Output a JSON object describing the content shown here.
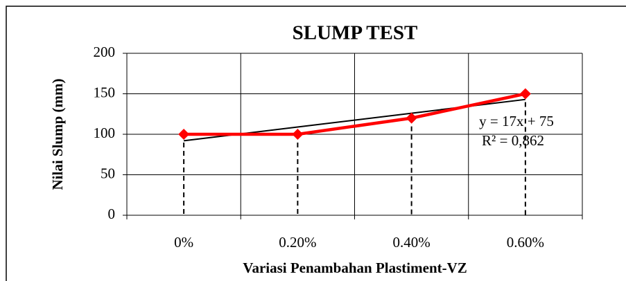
{
  "chart_data": {
    "type": "line",
    "title": "SLUMP  TEST",
    "xlabel": "Variasi Penambahan Plastiment-VZ",
    "ylabel": "Nilai Slump (mm)",
    "categories": [
      "0%",
      "0.20%",
      "0.40%",
      "0.60%"
    ],
    "series": [
      {
        "name": "Nilai Slump",
        "color": "#ff0000",
        "values": [
          100,
          100,
          120,
          150
        ]
      }
    ],
    "trendline": {
      "color": "#000000",
      "values": [
        92,
        109,
        126,
        143
      ]
    },
    "annotations": [
      "y = 17x + 75",
      "R² = 0,862"
    ],
    "ylim": [
      0,
      200
    ],
    "yticks": [
      0,
      50,
      100,
      150,
      200
    ],
    "grid": true,
    "drop_lines": true
  }
}
